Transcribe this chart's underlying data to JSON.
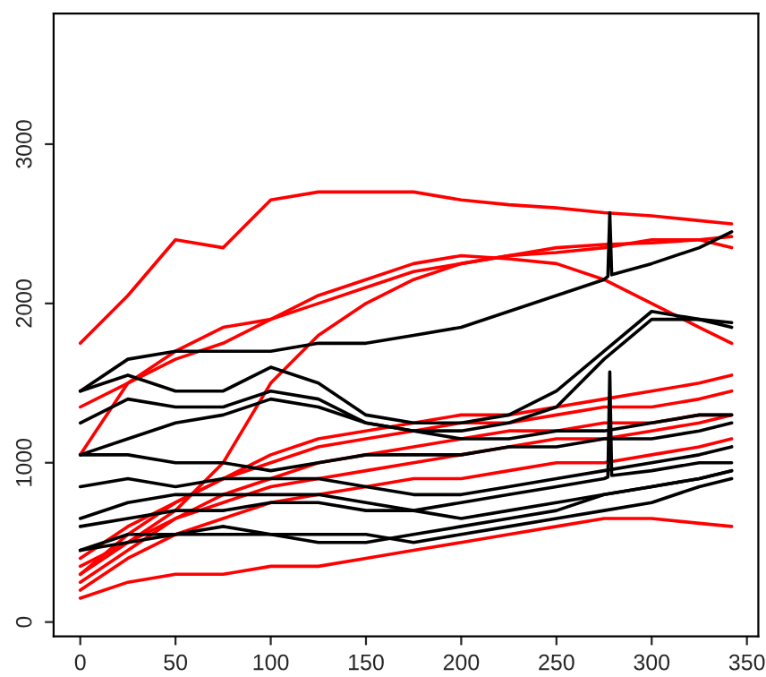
{
  "chart_data": {
    "type": "line",
    "x": [
      0,
      25,
      50,
      75,
      100,
      125,
      150,
      175,
      200,
      225,
      250,
      275,
      300,
      325,
      342
    ],
    "xlim": [
      -14,
      356
    ],
    "ylim": [
      -90,
      3820
    ],
    "xticks": [
      0,
      50,
      100,
      150,
      200,
      250,
      300,
      350
    ],
    "yticks": [
      0,
      1000,
      2000,
      3000
    ],
    "grid": false,
    "legend": false,
    "line_style": "solid",
    "marker": "none",
    "series": [
      {
        "color": "#ff0000",
        "values": [
          1750,
          2050,
          2400,
          2350,
          2650,
          2700,
          2700,
          2700,
          2650,
          2620,
          2600,
          2570,
          2550,
          2520,
          2500
        ]
      },
      {
        "color": "#ff0000",
        "values": [
          1350,
          1500,
          1700,
          1850,
          1900,
          2000,
          2100,
          2200,
          2250,
          2300,
          2350,
          2370,
          2380,
          2400,
          2420
        ]
      },
      {
        "color": "#ff0000",
        "values": [
          1050,
          1500,
          1650,
          1750,
          1900,
          2050,
          2150,
          2250,
          2300,
          2280,
          2250,
          2150,
          2000,
          1850,
          1750
        ]
      },
      {
        "color": "#ff0000",
        "values": [
          300,
          500,
          700,
          1000,
          1500,
          1800,
          2000,
          2150,
          2250,
          2300,
          2320,
          2350,
          2400,
          2400,
          2350
        ]
      },
      {
        "color": "#ff0000",
        "values": [
          400,
          600,
          750,
          900,
          1050,
          1150,
          1200,
          1250,
          1300,
          1300,
          1350,
          1400,
          1450,
          1500,
          1550
        ]
      },
      {
        "color": "#ff0000",
        "values": [
          300,
          550,
          750,
          900,
          1000,
          1100,
          1150,
          1200,
          1250,
          1250,
          1300,
          1350,
          1350,
          1400,
          1450
        ]
      },
      {
        "color": "#ff0000",
        "values": [
          250,
          450,
          650,
          800,
          900,
          1000,
          1050,
          1100,
          1150,
          1200,
          1200,
          1250,
          1250,
          1300,
          1300
        ]
      },
      {
        "color": "#ff0000",
        "values": [
          350,
          500,
          650,
          750,
          850,
          900,
          950,
          1000,
          1050,
          1100,
          1150,
          1150,
          1200,
          1250,
          1300
        ]
      },
      {
        "color": "#ff0000",
        "values": [
          200,
          400,
          550,
          650,
          750,
          800,
          850,
          900,
          900,
          950,
          1000,
          1000,
          1050,
          1100,
          1150
        ]
      },
      {
        "color": "#ff0000",
        "values": [
          150,
          250,
          300,
          300,
          350,
          350,
          400,
          450,
          500,
          550,
          600,
          650,
          650,
          620,
          600
        ]
      },
      {
        "color": "#000000",
        "x": [
          0,
          25,
          50,
          75,
          100,
          125,
          150,
          175,
          200,
          225,
          250,
          275,
          277,
          278,
          279,
          300,
          325,
          342
        ],
        "values": [
          1450,
          1650,
          1700,
          1700,
          1700,
          1750,
          1750,
          1800,
          1850,
          1950,
          2050,
          2150,
          2170,
          2570,
          2180,
          2250,
          2350,
          2450
        ]
      },
      {
        "color": "#000000",
        "values": [
          1450,
          1550,
          1450,
          1450,
          1600,
          1500,
          1300,
          1250,
          1250,
          1300,
          1450,
          1700,
          1950,
          1900,
          1850
        ]
      },
      {
        "color": "#000000",
        "values": [
          1250,
          1400,
          1350,
          1350,
          1450,
          1400,
          1250,
          1200,
          1200,
          1250,
          1350,
          1650,
          1900,
          1900,
          1880
        ]
      },
      {
        "color": "#000000",
        "values": [
          1050,
          1150,
          1250,
          1300,
          1400,
          1350,
          1250,
          1200,
          1150,
          1150,
          1200,
          1200,
          1250,
          1300,
          1300
        ]
      },
      {
        "color": "#000000",
        "values": [
          1050,
          1050,
          1000,
          1000,
          950,
          1000,
          1050,
          1050,
          1050,
          1100,
          1100,
          1150,
          1150,
          1200,
          1250
        ]
      },
      {
        "color": "#000000",
        "values": [
          850,
          900,
          850,
          900,
          900,
          900,
          850,
          800,
          800,
          850,
          900,
          950,
          1000,
          1050,
          1100
        ]
      },
      {
        "color": "#000000",
        "x": [
          0,
          25,
          50,
          75,
          100,
          125,
          150,
          175,
          200,
          225,
          250,
          275,
          277,
          278,
          279,
          300,
          325,
          342
        ],
        "values": [
          650,
          750,
          800,
          800,
          800,
          800,
          750,
          700,
          750,
          800,
          850,
          900,
          910,
          1570,
          920,
          950,
          1000,
          1000
        ]
      },
      {
        "color": "#000000",
        "values": [
          600,
          650,
          700,
          700,
          750,
          750,
          700,
          700,
          650,
          700,
          750,
          800,
          850,
          900,
          950
        ]
      },
      {
        "color": "#000000",
        "values": [
          450,
          500,
          550,
          550,
          550,
          500,
          500,
          550,
          600,
          650,
          700,
          800,
          850,
          900,
          950
        ]
      },
      {
        "color": "#000000",
        "values": [
          450,
          550,
          550,
          600,
          550,
          550,
          550,
          500,
          550,
          600,
          650,
          700,
          750,
          850,
          900
        ]
      }
    ]
  }
}
